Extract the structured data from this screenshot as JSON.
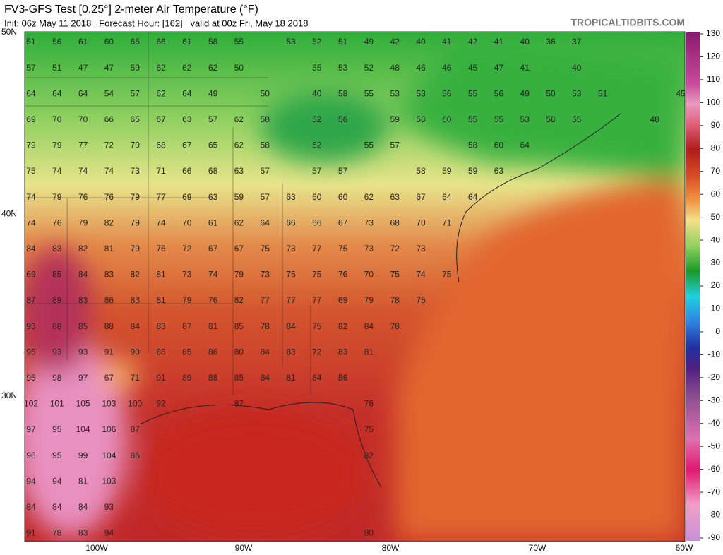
{
  "header": {
    "title": "FV3-GFS Test [0.25°] 2-meter Air Temperature (°F)",
    "subtitle": "Init: 06z May 11 2018   Forecast Hour: [162]   valid at 00z Fri, May 18 2018",
    "brand": "TROPICALTIDBITS.COM"
  },
  "colorbar": {
    "ticks": [
      130,
      120,
      110,
      100,
      90,
      80,
      70,
      60,
      50,
      40,
      30,
      20,
      10,
      0,
      -10,
      -20,
      -30,
      -40,
      -50,
      -60,
      -70,
      -80,
      -90
    ]
  },
  "lat_labels": [
    "50N",
    "40N",
    "30N"
  ],
  "lon_labels": [
    "100W",
    "90W",
    "80W",
    "70W",
    "60W"
  ],
  "stations": [
    [
      51,
      56,
      61,
      60,
      65,
      66,
      61,
      58,
      55,
      null,
      53,
      52,
      51,
      49,
      42,
      40,
      41,
      42,
      41,
      40,
      36,
      37,
      null,
      null,
      null,
      null
    ],
    [
      57,
      51,
      47,
      47,
      59,
      62,
      62,
      62,
      50,
      null,
      null,
      55,
      53,
      52,
      48,
      46,
      46,
      45,
      47,
      41,
      null,
      40,
      null,
      null,
      null,
      null
    ],
    [
      64,
      64,
      64,
      54,
      57,
      62,
      64,
      49,
      null,
      50,
      null,
      40,
      58,
      55,
      53,
      53,
      56,
      55,
      56,
      49,
      50,
      53,
      51,
      null,
      null,
      45
    ],
    [
      69,
      70,
      70,
      66,
      65,
      67,
      63,
      57,
      62,
      58,
      null,
      52,
      56,
      null,
      59,
      58,
      60,
      55,
      55,
      53,
      58,
      55,
      null,
      null,
      48,
      null
    ],
    [
      79,
      79,
      77,
      72,
      70,
      68,
      67,
      65,
      62,
      58,
      null,
      62,
      null,
      55,
      57,
      null,
      null,
      58,
      60,
      64,
      null,
      null,
      null,
      null,
      null,
      null
    ],
    [
      75,
      74,
      74,
      74,
      73,
      71,
      66,
      68,
      63,
      57,
      null,
      57,
      57,
      null,
      null,
      58,
      59,
      59,
      63,
      null,
      null,
      null,
      null,
      null,
      null,
      null
    ],
    [
      74,
      79,
      76,
      76,
      79,
      77,
      69,
      63,
      59,
      57,
      63,
      60,
      60,
      62,
      63,
      67,
      64,
      64,
      null,
      null,
      null,
      null,
      null,
      null,
      null,
      null
    ],
    [
      74,
      76,
      79,
      82,
      79,
      74,
      70,
      61,
      62,
      64,
      66,
      66,
      67,
      73,
      68,
      70,
      71,
      null,
      null,
      null,
      null,
      null,
      null,
      null,
      null,
      null
    ],
    [
      84,
      83,
      82,
      81,
      79,
      76,
      72,
      67,
      67,
      75,
      73,
      77,
      75,
      73,
      72,
      73,
      null,
      null,
      null,
      null,
      null,
      null,
      null,
      null,
      null,
      null
    ],
    [
      69,
      85,
      84,
      83,
      82,
      81,
      73,
      74,
      79,
      73,
      75,
      75,
      76,
      70,
      75,
      74,
      75,
      null,
      null,
      null,
      null,
      null,
      null,
      null,
      null,
      null
    ],
    [
      87,
      89,
      83,
      86,
      83,
      81,
      79,
      76,
      82,
      77,
      77,
      77,
      69,
      79,
      78,
      75,
      null,
      null,
      null,
      null,
      null,
      null,
      null,
      null,
      null,
      null
    ],
    [
      93,
      88,
      85,
      88,
      84,
      83,
      87,
      81,
      85,
      78,
      84,
      75,
      82,
      84,
      78,
      null,
      null,
      null,
      null,
      null,
      null,
      null,
      null,
      null,
      null,
      null
    ],
    [
      95,
      93,
      93,
      91,
      90,
      86,
      85,
      86,
      80,
      84,
      83,
      72,
      83,
      81,
      null,
      null,
      null,
      null,
      null,
      null,
      null,
      null,
      null,
      null,
      null,
      null
    ],
    [
      95,
      98,
      97,
      67,
      71,
      91,
      89,
      88,
      85,
      84,
      81,
      84,
      86,
      null,
      null,
      null,
      null,
      null,
      null,
      null,
      null,
      null,
      null,
      null,
      null,
      null
    ],
    [
      102,
      101,
      105,
      103,
      100,
      92,
      null,
      null,
      87,
      null,
      null,
      null,
      null,
      76,
      null,
      null,
      null,
      null,
      null,
      null,
      null,
      null,
      null,
      null,
      null,
      null
    ],
    [
      97,
      95,
      104,
      106,
      87,
      null,
      null,
      null,
      null,
      null,
      null,
      null,
      null,
      75,
      null,
      null,
      null,
      null,
      null,
      null,
      null,
      null,
      null,
      null,
      null,
      null
    ],
    [
      96,
      95,
      99,
      104,
      86,
      null,
      null,
      null,
      null,
      null,
      null,
      null,
      null,
      82,
      null,
      null,
      null,
      null,
      null,
      null,
      null,
      null,
      null,
      null,
      null,
      null
    ],
    [
      94,
      94,
      81,
      103,
      null,
      null,
      null,
      null,
      null,
      null,
      null,
      null,
      null,
      null,
      null,
      null,
      null,
      null,
      null,
      null,
      null,
      null,
      null,
      null,
      null,
      null
    ],
    [
      84,
      84,
      84,
      93,
      null,
      null,
      null,
      null,
      null,
      null,
      null,
      null,
      null,
      null,
      null,
      null,
      null,
      null,
      null,
      null,
      null,
      null,
      null,
      null,
      null,
      null
    ],
    [
      91,
      78,
      83,
      94,
      null,
      null,
      null,
      null,
      null,
      null,
      null,
      null,
      null,
      80,
      null,
      null,
      null,
      null,
      null,
      null,
      null,
      null,
      null,
      null,
      null,
      null
    ]
  ]
}
